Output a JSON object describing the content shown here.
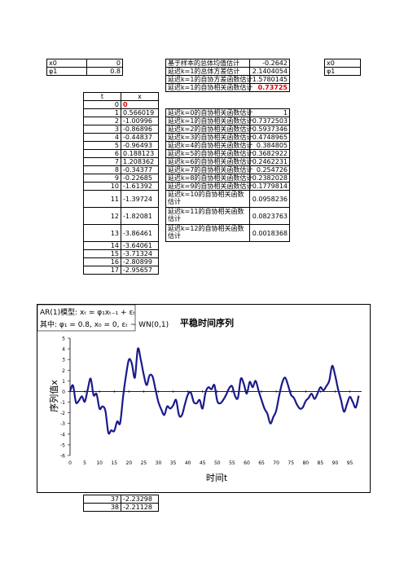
{
  "left_params": [
    {
      "label": "x0",
      "value": "0"
    },
    {
      "label": "φ1",
      "value": "0.8"
    }
  ],
  "right_params": [
    "x0",
    "φ1"
  ],
  "series_table": {
    "headers": [
      "t",
      "x"
    ],
    "rows": [
      {
        "t": "0",
        "x": "0"
      },
      {
        "t": "1",
        "x": "0.566019"
      },
      {
        "t": "2",
        "x": "-1.00996"
      },
      {
        "t": "3",
        "x": "-0.86896"
      },
      {
        "t": "4",
        "x": "-0.44837"
      },
      {
        "t": "5",
        "x": "-0.96493"
      },
      {
        "t": "6",
        "x": "0.188123"
      },
      {
        "t": "7",
        "x": "1.208362"
      },
      {
        "t": "8",
        "x": "-0.34377"
      },
      {
        "t": "9",
        "x": "-0.22685"
      },
      {
        "t": "10",
        "x": "-1.61392"
      },
      {
        "t": "11",
        "x": "-1.39724"
      },
      {
        "t": "12",
        "x": "-1.82081"
      },
      {
        "t": "13",
        "x": "-3.86461"
      },
      {
        "t": "14",
        "x": "-3.64061"
      },
      {
        "t": "15",
        "x": "-3.71324"
      },
      {
        "t": "16",
        "x": "-2.80899"
      },
      {
        "t": "17",
        "x": "-2.95657"
      }
    ],
    "bottom_rows": [
      {
        "t": "37",
        "x": "-2.23298"
      },
      {
        "t": "38",
        "x": "-2.21128"
      }
    ]
  },
  "stats_top": [
    {
      "label": "基于样本的总体均值估计",
      "value": "-0.2642"
    },
    {
      "label": "延迟k=1的总体方差估计",
      "value": "2.1404054"
    },
    {
      "label": "延迟k=1的自协方差函数估计",
      "value": "1.5780145"
    },
    {
      "label": "延迟k=1的自协相关函数估计",
      "value": "0.73725"
    }
  ],
  "acf": [
    {
      "label": "延迟k=0的自协相关函数估计",
      "value": "1"
    },
    {
      "label": "延迟k=1的自协相关函数估计",
      "value": "0.7372503"
    },
    {
      "label": "延迟k=2的自协相关函数估计",
      "value": "0.5937346"
    },
    {
      "label": "延迟k=3的自协相关函数估计",
      "value": "0.4748965"
    },
    {
      "label": "延迟k=4的自协相关函数估计",
      "value": "0.384805"
    },
    {
      "label": "延迟k=5的自协相关函数估计",
      "value": "0.3682922"
    },
    {
      "label": "延迟k=6的自协相关函数估计",
      "value": "0.2462231"
    },
    {
      "label": "延迟k=7的自协相关函数估计",
      "value": "0.254726"
    },
    {
      "label": "延迟k=8的自协相关函数估计",
      "value": "0.2382028"
    },
    {
      "label": "延迟k=9的自协相关函数估计",
      "value": "0.1779814"
    },
    {
      "label": "延迟k=10的自协相关函数估计",
      "value": "0.0958236"
    },
    {
      "label": "延迟k=11的自协相关函数估计",
      "value": "0.0823763"
    },
    {
      "label": "延迟k=12的自协相关函数估计",
      "value": "0.0018368"
    }
  ],
  "chart_data": {
    "type": "line",
    "title": "平稳时间序列",
    "xlabel": "时间t",
    "ylabel": "序列值x",
    "formula_line1": "AR(1)模型: xₜ = φ₁xₜ₋₁ + εₜ",
    "formula_line2": "其中: φ₁ = 0.8, x₀ = 0, εₜ ~ WN(0,1)",
    "xlim": [
      0,
      99
    ],
    "ylim": [
      -6,
      5
    ],
    "x_ticks": [
      "0",
      "5",
      "10",
      "15",
      "20",
      "25",
      "30",
      "35",
      "40",
      "45",
      "50",
      "55",
      "60",
      "65",
      "70",
      "75",
      "80",
      "85",
      "90",
      "95"
    ],
    "y_ticks": [
      "5",
      "4",
      "3",
      "2",
      "1",
      "0",
      "-1",
      "-2",
      "-3",
      "-4",
      "-5",
      "-6"
    ],
    "line_color": "#1a1a8c",
    "x": [
      0,
      1,
      2,
      3,
      4,
      5,
      6,
      7,
      8,
      9,
      10,
      11,
      12,
      13,
      14,
      15,
      16,
      17,
      18,
      19,
      20,
      21,
      22,
      23,
      24,
      25,
      26,
      27,
      28,
      29,
      30,
      31,
      32,
      33,
      34,
      35,
      36,
      37,
      38,
      39,
      40,
      41,
      42,
      43,
      44,
      45,
      46,
      47,
      48,
      49,
      50,
      51,
      52,
      53,
      54,
      55,
      56,
      57,
      58,
      59,
      60,
      61,
      62,
      63,
      64,
      65,
      66,
      67,
      68,
      69,
      70,
      71,
      72,
      73,
      74,
      75,
      76,
      77,
      78,
      79,
      80,
      81,
      82,
      83,
      84,
      85,
      86,
      87,
      88,
      89,
      90,
      91,
      92,
      93,
      94,
      95,
      96,
      97,
      98
    ],
    "y": [
      0,
      0.57,
      -1.01,
      -0.87,
      -0.45,
      -0.96,
      0.19,
      1.21,
      -0.34,
      -0.23,
      -1.61,
      -1.4,
      -1.82,
      -3.86,
      -3.64,
      -3.71,
      -2.81,
      -2.96,
      -0.5,
      1.5,
      3.0,
      2.6,
      1.3,
      4.0,
      3.0,
      1.6,
      0.6,
      1.5,
      1.4,
      0.2,
      -1.0,
      -1.7,
      -2.2,
      -1.4,
      -1.6,
      -1.3,
      -0.8,
      -2.23,
      -2.21,
      -1.2,
      -0.3,
      -0.1,
      -1.0,
      -1.1,
      -0.8,
      -1.6,
      -0.1,
      0.4,
      0.2,
      0.6,
      -0.9,
      -1.1,
      -0.8,
      -0.3,
      0.3,
      0.5,
      -0.4,
      -0.6,
      1.2,
      0.7,
      -0.2,
      0.9,
      0.4,
      1.0,
      0.1,
      -0.8,
      -1.6,
      -2.1,
      -3.0,
      -2.4,
      -1.8,
      -0.4,
      0.8,
      1.3,
      0.6,
      -0.3,
      -0.6,
      -1.2,
      -1.6,
      -1.5,
      -0.9,
      -0.6,
      -0.2,
      -0.7,
      -0.2,
      0.4,
      0.1,
      0.5,
      1.0,
      2.4,
      1.5,
      0.2,
      -0.8,
      -1.9,
      -1.2,
      -0.5,
      -1.0,
      -1.5,
      -0.4
    ]
  }
}
